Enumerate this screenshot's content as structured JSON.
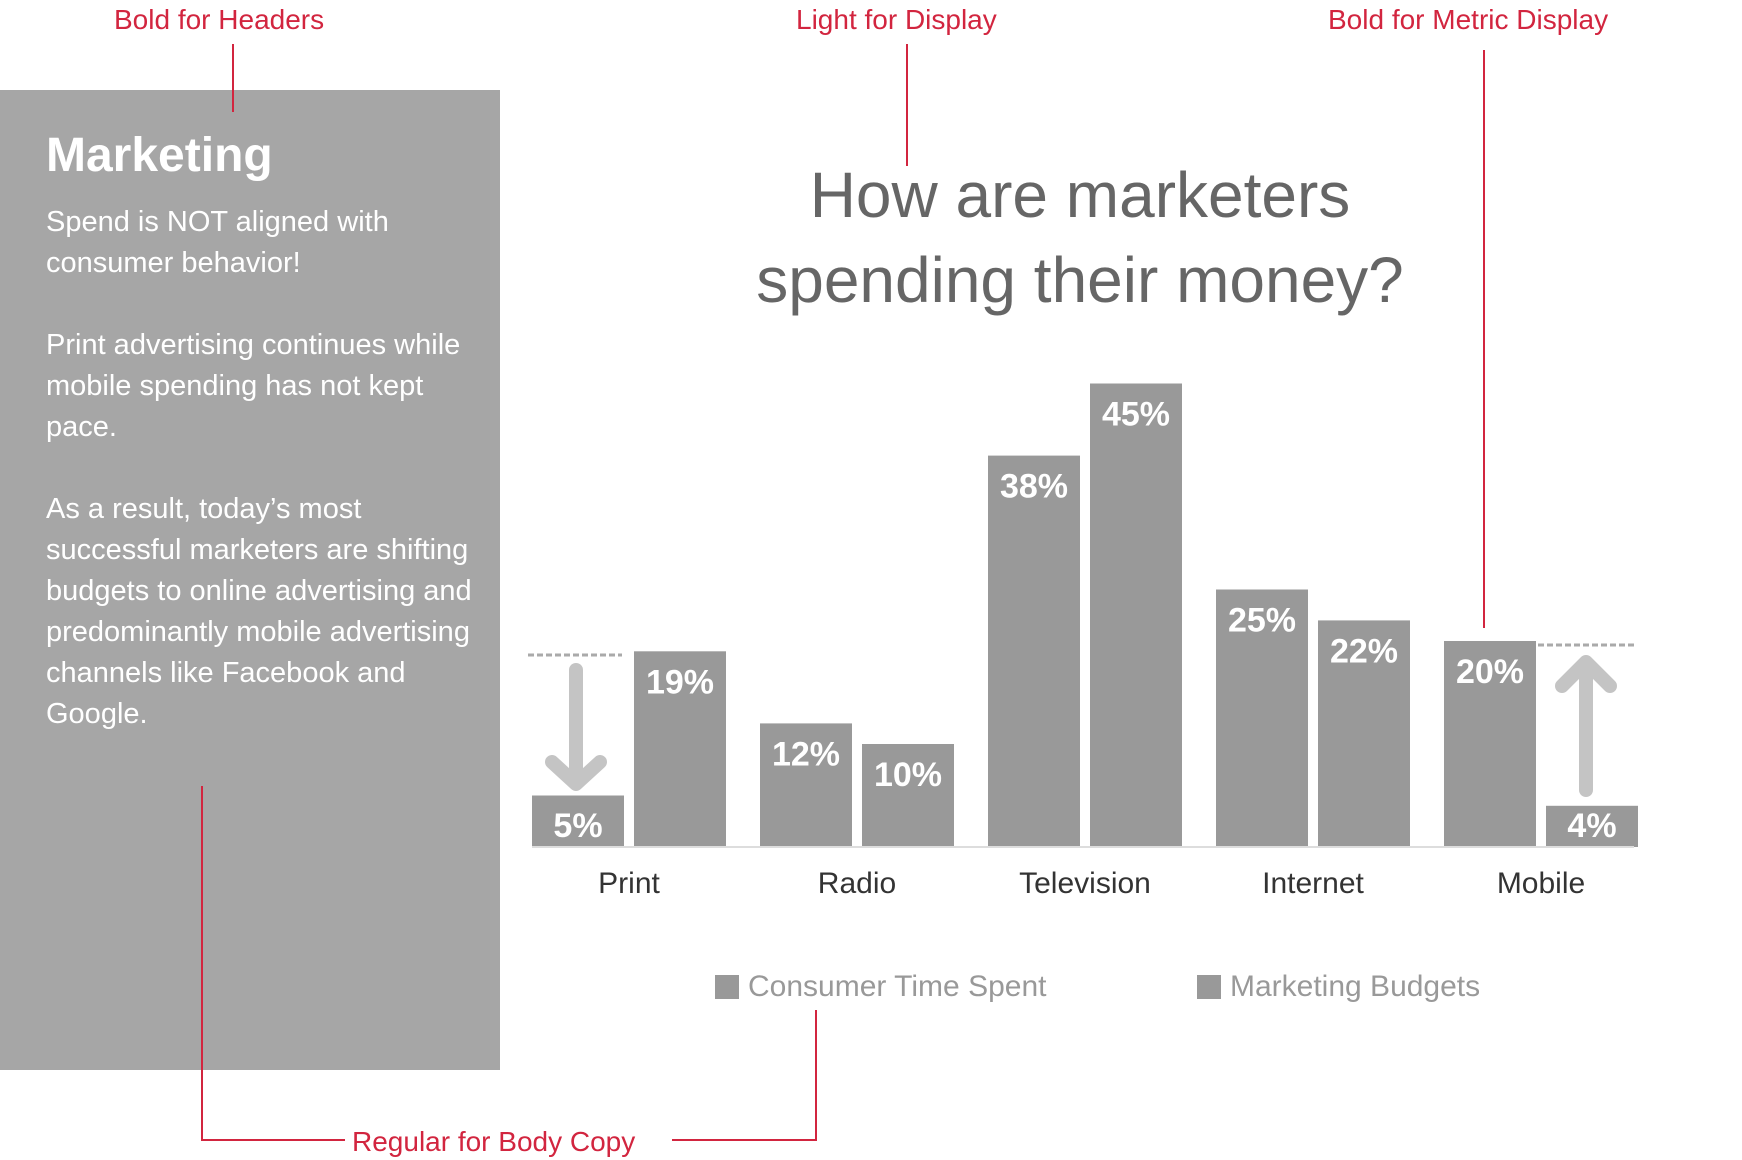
{
  "annotations": {
    "headers": "Bold for Headers",
    "display": "Light for Display",
    "metric": "Bold for Metric Display",
    "body": "Regular for Body Copy"
  },
  "panel": {
    "title": "Marketing",
    "p1": "Spend is NOT aligned with consumer behavior!",
    "p2": "Print advertising continues while mobile spending has not kept pace.",
    "p3": "As a result, today’s most successful marketers are shifting budgets to online advertising and predominantly mobile advertising channels like Facebook and Google."
  },
  "colors": {
    "accent": "#d2253f",
    "bar": "#999999",
    "panel": "#a6a6a6",
    "arrow": "#c4c4c4"
  },
  "chart_data": {
    "type": "bar",
    "title_line1": "How are marketers",
    "title_line2": "spending their money?",
    "categories": [
      "Print",
      "Radio",
      "Television",
      "Internet",
      "Mobile"
    ],
    "series": [
      {
        "name": "Consumer Time Spent",
        "values": [
          5,
          12,
          38,
          25,
          20
        ]
      },
      {
        "name": "Marketing Budgets",
        "values": [
          19,
          10,
          45,
          22,
          4
        ]
      }
    ],
    "value_labels": [
      [
        "5%",
        "12%",
        "38%",
        "25%",
        "20%"
      ],
      [
        "19%",
        "10%",
        "45%",
        "22%",
        "4%"
      ]
    ],
    "ylim": [
      0,
      45
    ],
    "legend_position": "bottom",
    "grid": false
  }
}
